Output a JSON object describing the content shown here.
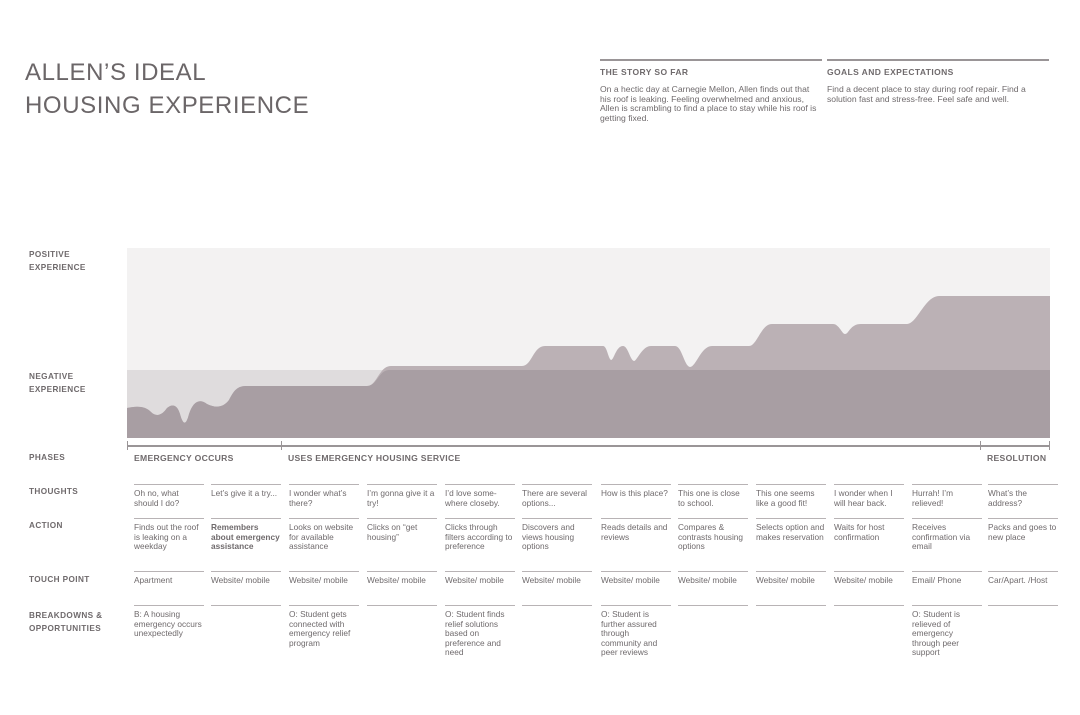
{
  "title": {
    "line1": "ALLEN’S IDEAL",
    "line2": "HOUSING EXPERIENCE"
  },
  "story": {
    "heading": "THE STORY SO FAR",
    "text": "On a hectic day at Carnegie Mellon, Allen finds out that his roof is leaking. Feeling overwhelmed and anxious, Allen is scrambling to find a place to stay while his roof is getting fixed."
  },
  "goals": {
    "heading": "GOALS AND EXPECTATIONS",
    "text": "Find a decent place to stay during roof repair. Find a solution fast and stress-free. Feel safe and well."
  },
  "chart_labels": {
    "positive": [
      "POSITIVE",
      "EXPERIENCE"
    ],
    "negative": [
      "NEGATIVE",
      "EXPERIENCE"
    ]
  },
  "colors": {
    "positive_band": "#f3f2f2",
    "negative_band": "#dfdcdd",
    "curve_positive": "#bbb1b5",
    "curve_negative": "#a89ea3",
    "rule": "#9a9597"
  },
  "phases": [
    {
      "label": "EMERGENCY OCCURS"
    },
    {
      "label": "USES EMERGENCY HOUSING SERVICE"
    },
    {
      "label": "RESOLUTION"
    }
  ],
  "row_labels": {
    "phases": "PHASES",
    "thoughts": "THOUGHTS",
    "action": "ACTION",
    "touch_point": "TOUCH POINT",
    "breakdowns": [
      "BREAKDOWNS &",
      "OPPORTUNITIES"
    ]
  },
  "steps": [
    {
      "thought": "Oh no, what should I do?",
      "action": "Finds out the roof is leaking on a weekday",
      "action_bold": false,
      "touch": "Apartment",
      "opportunity": "B: A housing emergency occurs unexpectedly"
    },
    {
      "thought": "Let’s give it a try...",
      "action": "Remembers about emergency assistance",
      "action_bold": true,
      "touch": "Website/ mobile",
      "opportunity": ""
    },
    {
      "thought": "I wonder what’s there?",
      "action": "Looks on website for available assistance",
      "action_bold": false,
      "touch": "Website/ mobile",
      "opportunity": "O: Student gets connected with emergency relief program"
    },
    {
      "thought": "I’m gonna give it a try!",
      "action": "Clicks on “get housing”",
      "action_bold": false,
      "touch": "Website/ mobile",
      "opportunity": ""
    },
    {
      "thought": "I’d love some-where closeby.",
      "action": "Clicks through filters according to preference",
      "action_bold": false,
      "touch": "Website/ mobile",
      "opportunity": "O: Student finds relief solutions based on preference and need"
    },
    {
      "thought": "There are several options...",
      "action": "Discovers and views housing options",
      "action_bold": false,
      "touch": "Website/ mobile",
      "opportunity": ""
    },
    {
      "thought": "How is this place?",
      "action": "Reads details and reviews",
      "action_bold": false,
      "touch": "Website/ mobile",
      "opportunity": "O: Student is further assured through community and peer reviews"
    },
    {
      "thought": "This one is close to school.",
      "action": "Compares & contrasts housing options",
      "action_bold": false,
      "touch": "Website/ mobile",
      "opportunity": ""
    },
    {
      "thought": "This one seems like a good fit!",
      "action": "Selects option and makes reservation",
      "action_bold": false,
      "touch": "Website/ mobile",
      "opportunity": ""
    },
    {
      "thought": "I wonder when I will hear back.",
      "action": "Waits for host confirmation",
      "action_bold": false,
      "touch": "Website/ mobile",
      "opportunity": ""
    },
    {
      "thought": "Hurrah! I’m relieved!",
      "action": "Receives confirmation via email",
      "action_bold": false,
      "touch": "Email/ Phone",
      "opportunity": "O: Student is relieved of emergency through peer support"
    },
    {
      "thought": "What’s the address?",
      "action": "Packs and goes to new place",
      "action_bold": false,
      "touch": "Car/Apart. /Host",
      "opportunity": ""
    }
  ]
}
